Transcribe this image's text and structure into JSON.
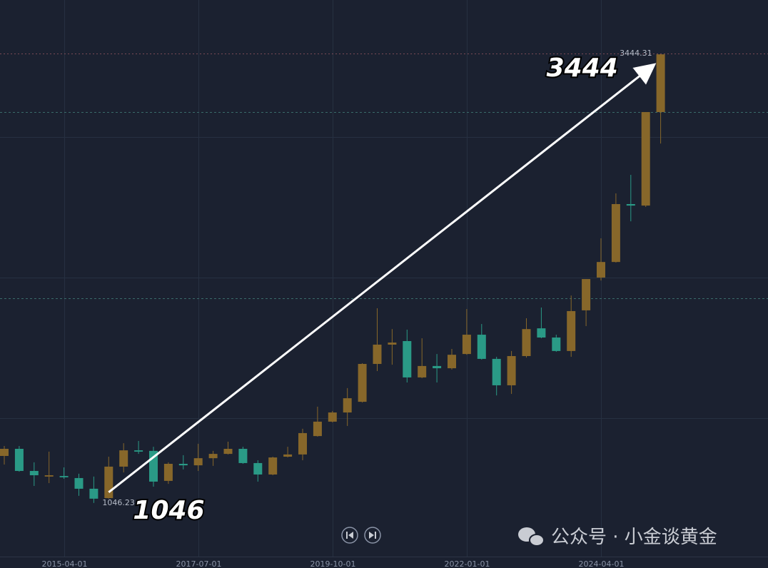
{
  "chart_data": {
    "type": "candlestick",
    "categories": [
      null,
      null,
      null,
      null,
      "2015-04-01",
      null,
      null,
      null,
      null,
      null,
      null,
      null,
      null,
      "2017-07-01",
      null,
      null,
      null,
      null,
      null,
      null,
      null,
      null,
      "2019-10-01",
      null,
      null,
      null,
      null,
      null,
      null,
      null,
      null,
      "2022-01-01",
      null,
      null,
      null,
      null,
      null,
      null,
      null,
      null,
      "2024-04-01",
      null,
      null,
      null,
      null
    ],
    "open": [
      1297,
      1335,
      1217,
      1187,
      1190,
      1179,
      1122,
      1072,
      1240,
      1327,
      1324,
      1164,
      1255,
      1247,
      1285,
      1308,
      1335,
      1259,
      1198,
      1293,
      1305,
      1403,
      1480,
      1529,
      1586,
      1788,
      1891,
      1910,
      1716,
      1777,
      1765,
      1841,
      1944,
      1815,
      1674,
      1830,
      1978,
      1929,
      1857,
      2074,
      2249,
      2332,
      2641,
      2633,
      3132
    ],
    "high": [
      1350,
      1350,
      1263,
      1320,
      1236,
      1202,
      1187,
      1293,
      1365,
      1377,
      1346,
      1263,
      1301,
      1362,
      1324,
      1373,
      1346,
      1274,
      1293,
      1346,
      1442,
      1560,
      1537,
      1659,
      1792,
      2085,
      1974,
      1971,
      1925,
      1841,
      1868,
      2081,
      2001,
      1826,
      1857,
      2032,
      2089,
      1944,
      2153,
      2241,
      2458,
      2698,
      2797,
      3132,
      3444.31
    ],
    "low": [
      1251,
      1213,
      1137,
      1152,
      1175,
      1084,
      1046.23,
      1069,
      1209,
      1308,
      1133,
      1148,
      1225,
      1217,
      1244,
      1305,
      1255,
      1160,
      1194,
      1289,
      1274,
      1400,
      1476,
      1457,
      1582,
      1750,
      1784,
      1689,
      1712,
      1689,
      1758,
      1837,
      1811,
      1620,
      1628,
      1822,
      1925,
      1853,
      1826,
      1990,
      2233,
      2329,
      2549,
      2626,
      2964
    ],
    "close": [
      1335,
      1217,
      1194,
      1194,
      1183,
      1122,
      1069,
      1240,
      1327,
      1320,
      1160,
      1255,
      1247,
      1285,
      1308,
      1335,
      1259,
      1198,
      1289,
      1305,
      1419,
      1480,
      1529,
      1605,
      1788,
      1891,
      1902,
      1716,
      1777,
      1765,
      1837,
      1944,
      1815,
      1674,
      1830,
      1974,
      1929,
      1857,
      2070,
      2241,
      2332,
      2641,
      2633,
      3132,
      3440
    ],
    "colors": {
      "up": "#87672a",
      "down": "#2a9a86"
    },
    "ylim": [
      760,
      3730
    ],
    "ygrid": [
      1500,
      2250,
      3000
    ],
    "price_lines": [
      3132,
      2138
    ],
    "grid": true,
    "annotations": [
      "1046",
      "3444"
    ]
  },
  "watermark": "公众号 · 小金谈黄金"
}
